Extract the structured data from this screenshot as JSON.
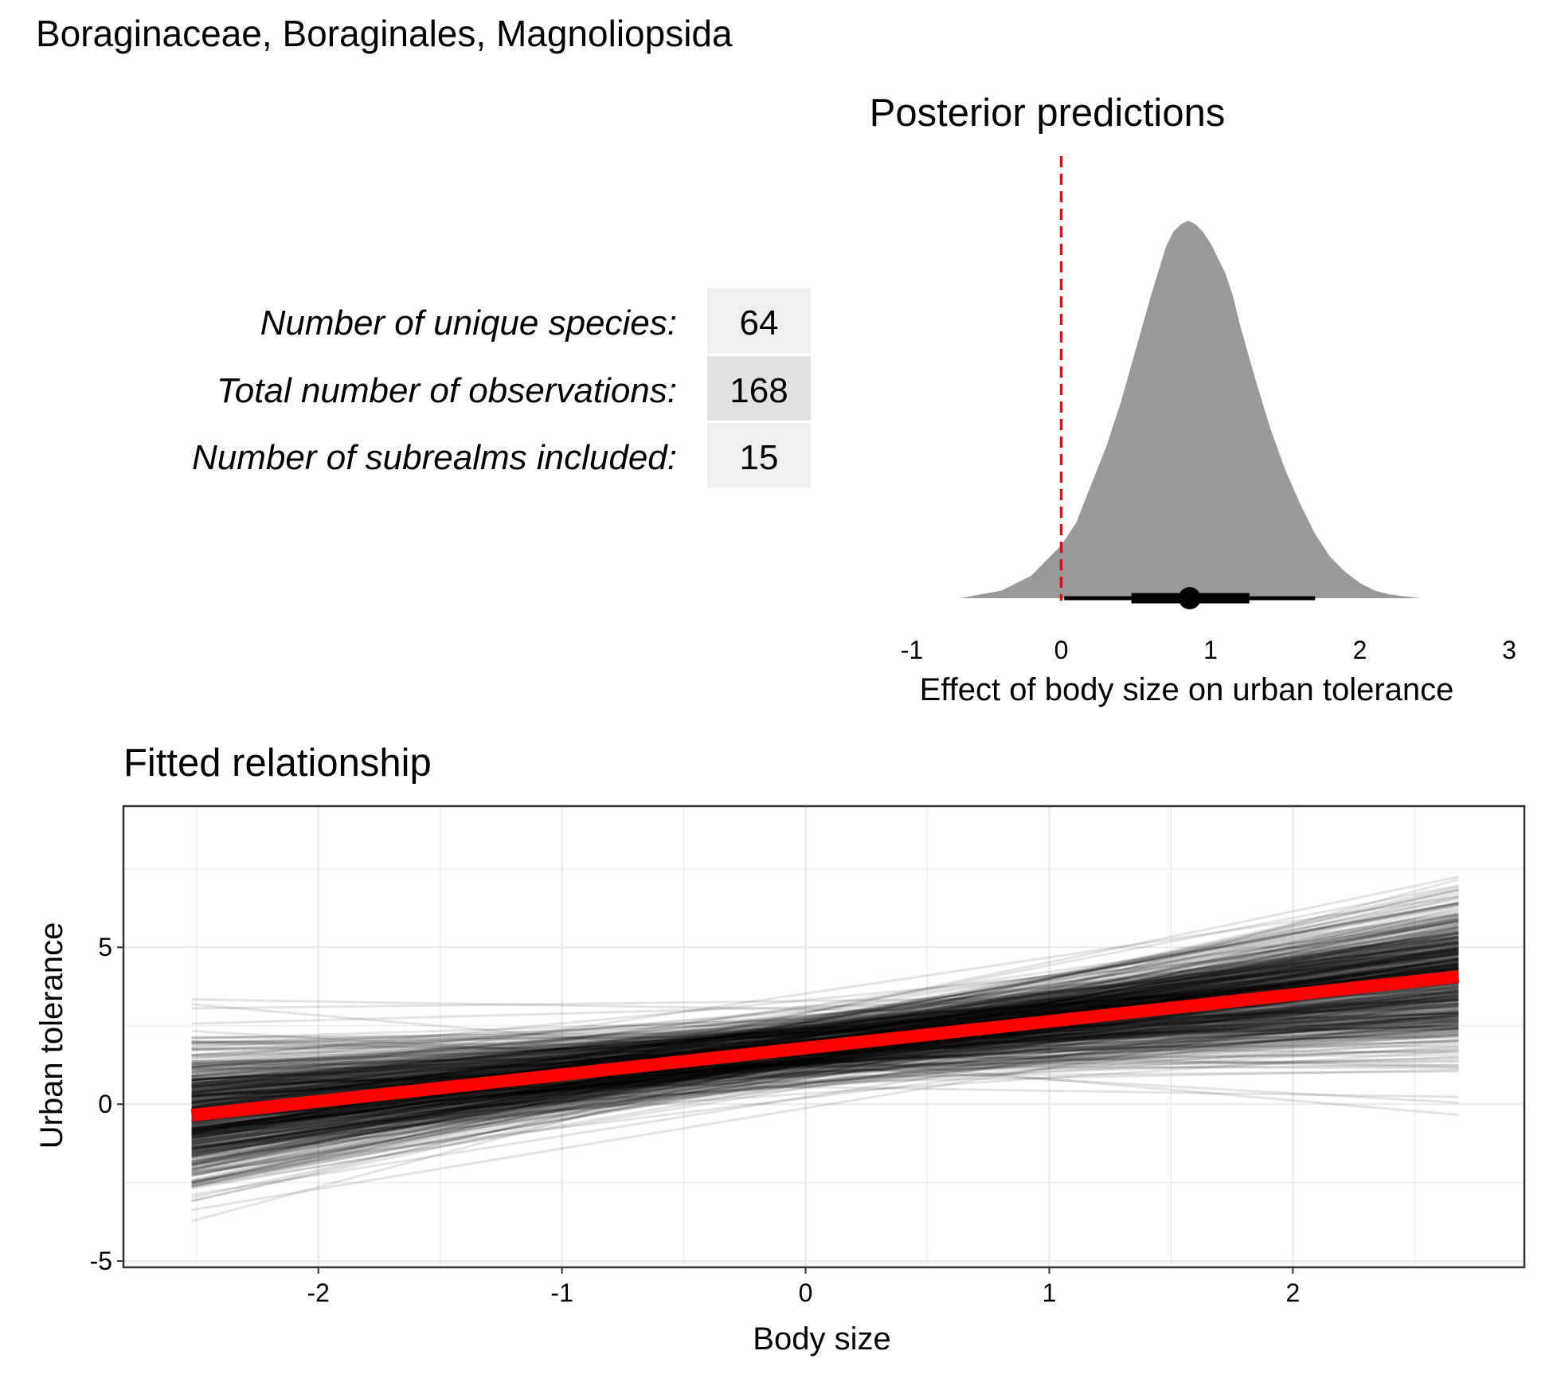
{
  "title": "Boraginaceae, Boraginales, Magnoliopsida",
  "stats_table": {
    "rows": [
      {
        "label": "Number of unique species:",
        "value": "64"
      },
      {
        "label": "Total number of observations:",
        "value": "168"
      },
      {
        "label": "Number of subrealms included:",
        "value": "15"
      }
    ]
  },
  "chart_data": [
    {
      "type": "area",
      "title": "Posterior predictions",
      "xlabel": "Effect of body size on urban tolerance",
      "ylabel": "",
      "xlim": [
        -1,
        3
      ],
      "x_ticks": [
        "-1",
        "0",
        "1",
        "2",
        "3"
      ],
      "grid": false,
      "fill_color": "#999999",
      "reference_line": {
        "x": 0,
        "color": "#ff0000",
        "style": "dashed"
      },
      "density": {
        "x": [
          -0.68,
          -0.4,
          -0.2,
          0.0,
          0.1,
          0.2,
          0.3,
          0.4,
          0.5,
          0.6,
          0.7,
          0.75,
          0.8,
          0.85,
          0.9,
          0.95,
          1.0,
          1.05,
          1.1,
          1.15,
          1.2,
          1.3,
          1.4,
          1.5,
          1.6,
          1.7,
          1.8,
          1.9,
          2.0,
          2.1,
          2.2,
          2.4
        ],
        "y": [
          0.0,
          0.02,
          0.06,
          0.14,
          0.2,
          0.3,
          0.4,
          0.52,
          0.66,
          0.8,
          0.93,
          0.97,
          0.99,
          1.0,
          0.99,
          0.97,
          0.94,
          0.9,
          0.86,
          0.8,
          0.72,
          0.58,
          0.45,
          0.34,
          0.25,
          0.17,
          0.11,
          0.07,
          0.04,
          0.02,
          0.01,
          0.0
        ]
      },
      "point_interval": {
        "median": 0.86,
        "inner": [
          0.47,
          1.26
        ],
        "outer": [
          0.02,
          1.7
        ]
      }
    },
    {
      "type": "line",
      "title": "Fitted relationship",
      "xlabel": "Body size",
      "ylabel": "Urban tolerance",
      "xlim": [
        -2.8,
        2.95
      ],
      "ylim": [
        -5.2,
        9.5
      ],
      "x_ticks": [
        -2,
        -1,
        0,
        1,
        2
      ],
      "y_ticks": [
        -5,
        0,
        5
      ],
      "grid": true,
      "x_range": [
        -2.52,
        2.68
      ],
      "fit": {
        "intercept": 1.79,
        "slope": 0.85,
        "color": "#ff0000"
      },
      "draws": {
        "count": 600,
        "color": "#000000",
        "intercept_mean": 1.79,
        "intercept_sd": 0.55,
        "slope_mean": 0.85,
        "slope_sd": 0.38
      }
    }
  ]
}
